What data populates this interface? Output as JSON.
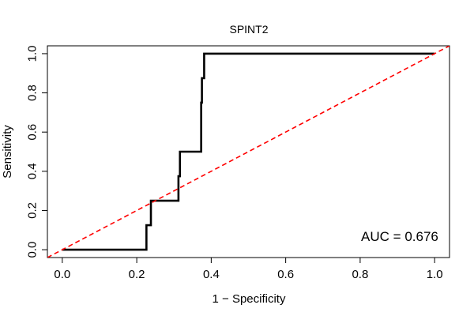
{
  "chart_data": {
    "type": "line",
    "title": "SPINT2",
    "xlabel": "1 − Specificity",
    "ylabel": "Sensitivity",
    "xlim": [
      -0.04,
      1.04
    ],
    "ylim": [
      -0.04,
      1.04
    ],
    "x_ticks": [
      0.0,
      0.2,
      0.4,
      0.6,
      0.8,
      1.0
    ],
    "x_tick_labels": [
      "0.0",
      "0.2",
      "0.4",
      "0.6",
      "0.8",
      "1.0"
    ],
    "y_ticks": [
      0.0,
      0.2,
      0.4,
      0.6,
      0.8,
      1.0
    ],
    "y_tick_labels": [
      "0.0",
      "0.2",
      "0.4",
      "0.6",
      "0.8",
      "1.0"
    ],
    "grid": false,
    "series": [
      {
        "color": "#000000",
        "style": "solid",
        "x": [
          0.0,
          0.226,
          0.226,
          0.238,
          0.238,
          0.312,
          0.312,
          0.316,
          0.316,
          0.373,
          0.373,
          0.375,
          0.375,
          0.381,
          0.381,
          1.0
        ],
        "y": [
          0.0,
          0.0,
          0.125,
          0.125,
          0.25,
          0.25,
          0.375,
          0.375,
          0.5,
          0.5,
          0.75,
          0.75,
          0.875,
          0.875,
          1.0,
          1.0
        ]
      },
      {
        "color": "#ff0000",
        "style": "dashed",
        "x": [
          -0.04,
          1.04
        ],
        "y": [
          -0.04,
          1.04
        ]
      }
    ],
    "annotations": [
      {
        "text": "AUC = 0.676",
        "x": 1.01,
        "y": 0.045
      }
    ]
  }
}
